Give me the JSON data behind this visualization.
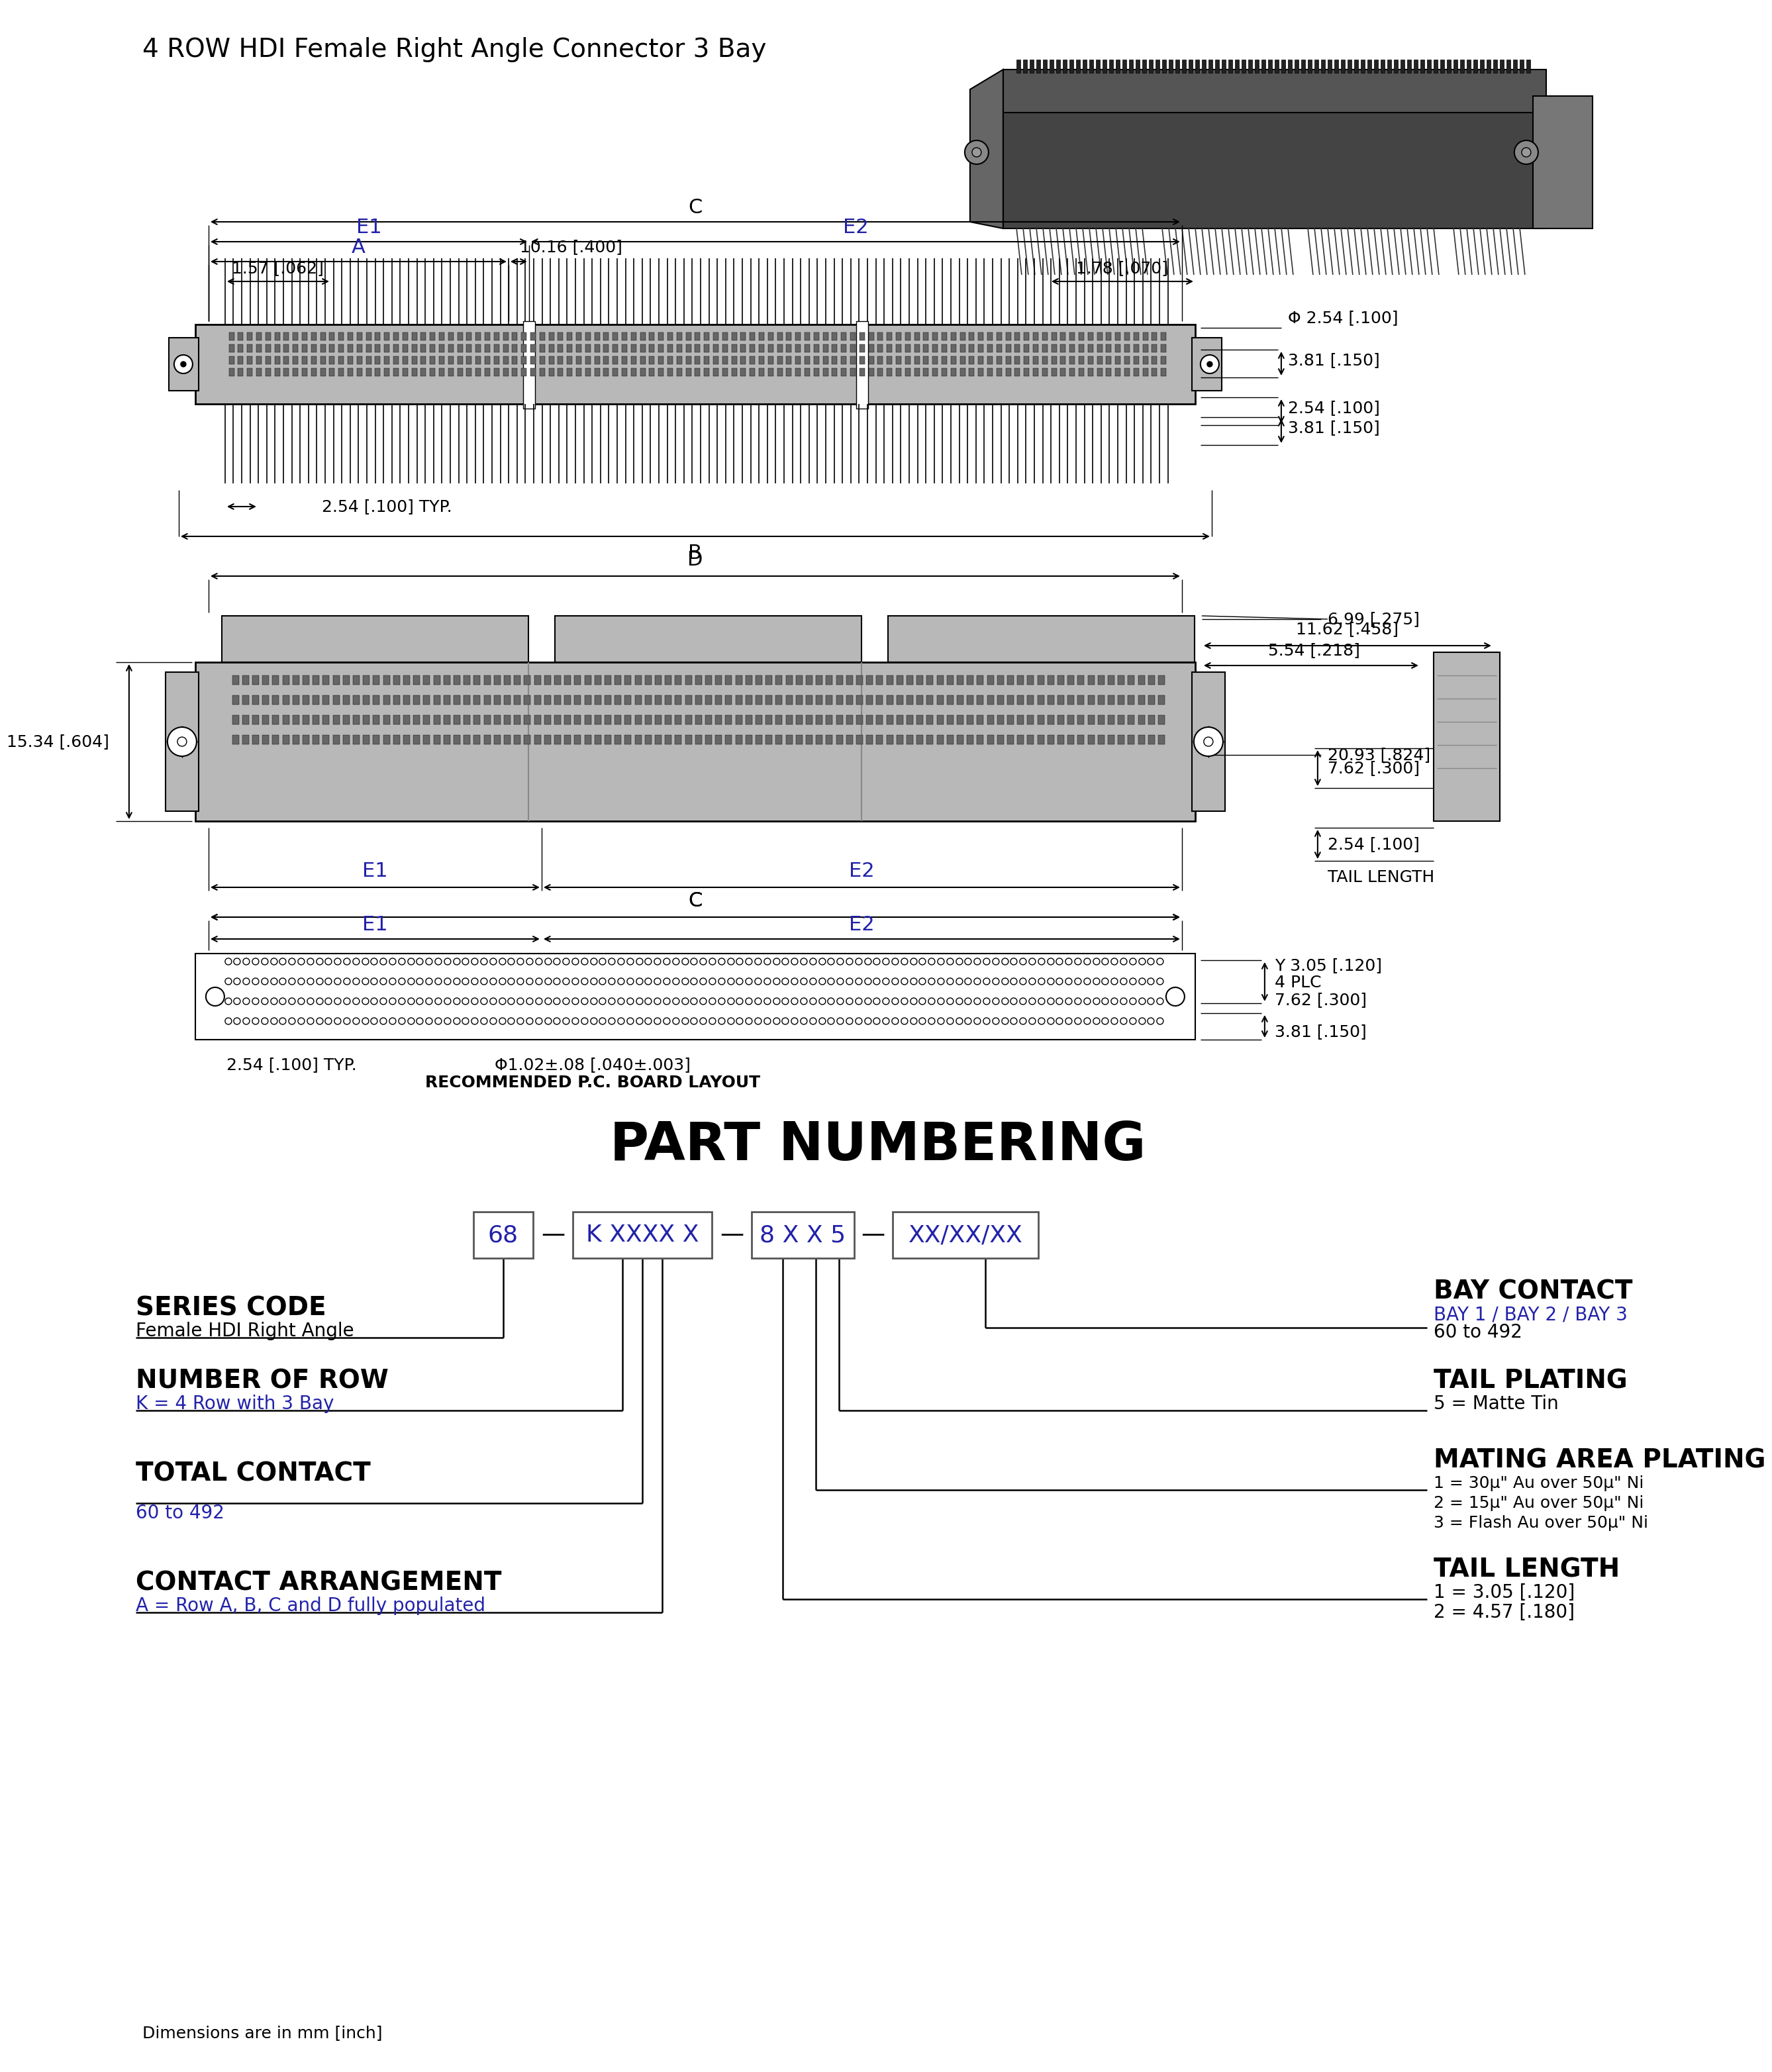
{
  "title": "4 ROW HDI Female Right Angle Connector 3 Bay",
  "bg_color": "#ffffff",
  "line_color": "#000000",
  "blue_color": "#2222aa",
  "gray_color": "#b8b8b8",
  "dark_gray": "#888888",
  "mid_gray": "#a0a0a0",
  "part_numbering_title": "PART NUMBERING",
  "series_code_label": "SERIES CODE",
  "series_code_sub": "Female HDI Right Angle",
  "num_row_label": "NUMBER OF ROW",
  "num_row_sub": "K = 4 Row with 3 Bay",
  "total_contact_label": "TOTAL CONTACT",
  "total_contact_sub": "60 to 492",
  "contact_arr_label": "CONTACT ARRANGEMENT",
  "contact_arr_sub": "A = Row A, B, C and D fully populated",
  "bay_contact_label": "BAY CONTACT",
  "bay_contact_sub": "BAY 1 / BAY 2 / BAY 3",
  "bay_contact_sub2": "60 to 492",
  "tail_plating_label": "TAIL PLATING",
  "tail_plating_sub": "5 = Matte Tin",
  "mating_area_label": "MATING AREA PLATING",
  "mating_area_sub1": "1 = 30μ\" Au over 50μ\" Ni",
  "mating_area_sub2": "2 = 15μ\" Au over 50μ\" Ni",
  "mating_area_sub3": "3 = Flash Au over 50μ\" Ni",
  "tail_length_label": "TAIL LENGTH",
  "tail_length_sub1": "1 = 3.05 [.120]",
  "tail_length_sub2": "2 = 4.57 [.180]",
  "dim_note": "Dimensions are in mm [inch]",
  "top_view": {
    "C_label": "C",
    "E1_label": "E1",
    "E2_label": "E2",
    "A_label": "A",
    "spacing_label": "10.16 [.400]",
    "dim1_label": "1.57 [.062]",
    "dim2_label": "1.78 [.070]",
    "phi_label": "Φ 2.54 [.100]",
    "d1_label": "3.81 [.150]",
    "d2_label": "2.54 [.100]",
    "d3_label": "3.81 [.150]",
    "typ_label": "2.54 [.100] TYP.",
    "B_label": "B"
  },
  "front_view": {
    "D_label": "D",
    "h1_label": "15.34 [.604]",
    "h2_label": "6.99 [.275]",
    "h3_label": "20.93 [.824]",
    "h4_label": "7.62 [.300]",
    "h5_label": "2.54 [.100]",
    "tail_length_label": "TAIL LENGTH",
    "r1_label": "11.62 [.458]",
    "r2_label": "5.54 [.218]",
    "E1_label": "E1",
    "E2_label": "E2",
    "C_label": "C"
  },
  "pcb_view": {
    "C_label": "C",
    "E1_label": "E1",
    "E2_label": "E2",
    "typ_label": "2.54 [.100] TYP.",
    "phi_hole_label": "Φ1.02±.08 [.040±.003]",
    "phi_mtg_label": "Υ 3.05 [.120]",
    "plc_label": "4 PLC",
    "dim_pcb_label": "7.62 [.300]",
    "dim_b_label": "3.81 [.150]",
    "pcb_layout_label": "RECOMMENDED P.C. BOARD LAYOUT"
  }
}
